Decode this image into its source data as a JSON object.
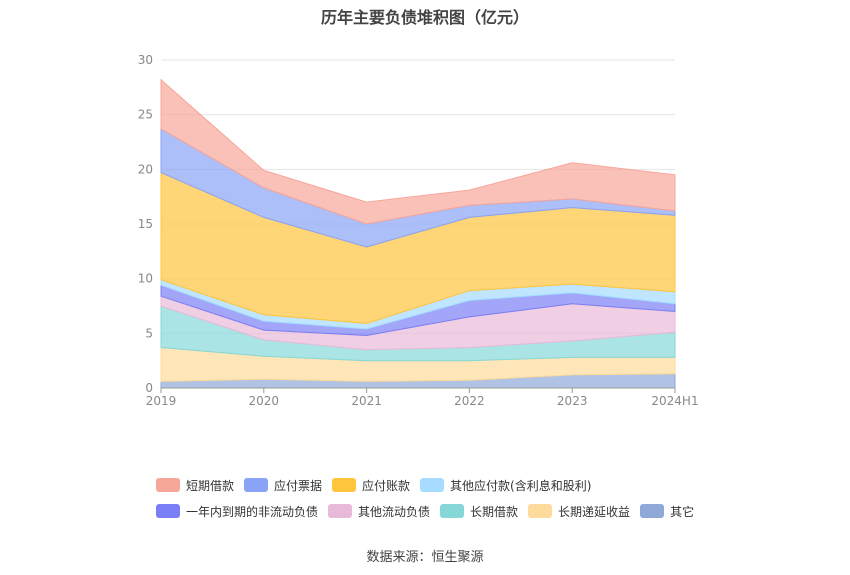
{
  "chart_data": {
    "type": "area",
    "title": "历年主要负债堆积图（亿元）",
    "categories": [
      "2019",
      "2020",
      "2021",
      "2022",
      "2023",
      "2024H1"
    ],
    "ylim": [
      0,
      30
    ],
    "yticks": [
      "0",
      "5",
      "10",
      "15",
      "20",
      "25",
      "30"
    ],
    "grid": true,
    "legend_position": "bottom",
    "series": [
      {
        "name": "其它",
        "color": "#8fa9d9",
        "values": [
          0.6,
          0.8,
          0.6,
          0.7,
          1.2,
          1.3
        ]
      },
      {
        "name": "长期递延收益",
        "color": "#fedb9a",
        "values": [
          3.1,
          2.1,
          1.9,
          1.8,
          1.6,
          1.5
        ]
      },
      {
        "name": "长期借款",
        "color": "#86d8d8",
        "values": [
          3.8,
          1.5,
          1.0,
          1.2,
          1.5,
          2.3
        ]
      },
      {
        "name": "其他流动负债",
        "color": "#e9b9d9",
        "values": [
          0.9,
          0.9,
          1.3,
          2.8,
          3.4,
          1.9
        ]
      },
      {
        "name": "一年内到期的非流动负债",
        "color": "#7b7ff5",
        "values": [
          1.0,
          0.8,
          0.6,
          1.5,
          1.0,
          0.7
        ]
      },
      {
        "name": "其他应付款(含利息和股利)",
        "color": "#a5dcff",
        "values": [
          0.5,
          0.6,
          0.5,
          0.9,
          0.8,
          1.1
        ]
      },
      {
        "name": "应付账款",
        "color": "#ffc53d",
        "values": [
          9.8,
          8.9,
          7.0,
          6.7,
          7.0,
          7.0
        ]
      },
      {
        "name": "应付票据",
        "color": "#8aa4f5",
        "values": [
          4.0,
          2.7,
          2.1,
          1.1,
          0.8,
          0.4
        ]
      },
      {
        "name": "短期借款",
        "color": "#f7a69a",
        "values": [
          4.5,
          1.6,
          2.0,
          1.4,
          3.3,
          3.3
        ]
      }
    ]
  },
  "legend": [
    {
      "label": "短期借款",
      "color": "#f7a69a"
    },
    {
      "label": "应付票据",
      "color": "#8aa4f5"
    },
    {
      "label": "应付账款",
      "color": "#ffc53d"
    },
    {
      "label": "其他应付款(含利息和股利)",
      "color": "#a5dcff"
    },
    {
      "label": "一年内到期的非流动负债",
      "color": "#7b7ff5"
    },
    {
      "label": "其他流动负债",
      "color": "#e9b9d9"
    },
    {
      "label": "长期借款",
      "color": "#86d8d8"
    },
    {
      "label": "长期递延收益",
      "color": "#fedb9a"
    },
    {
      "label": "其它",
      "color": "#8fa9d9"
    }
  ],
  "source": "数据来源：恒生聚源"
}
